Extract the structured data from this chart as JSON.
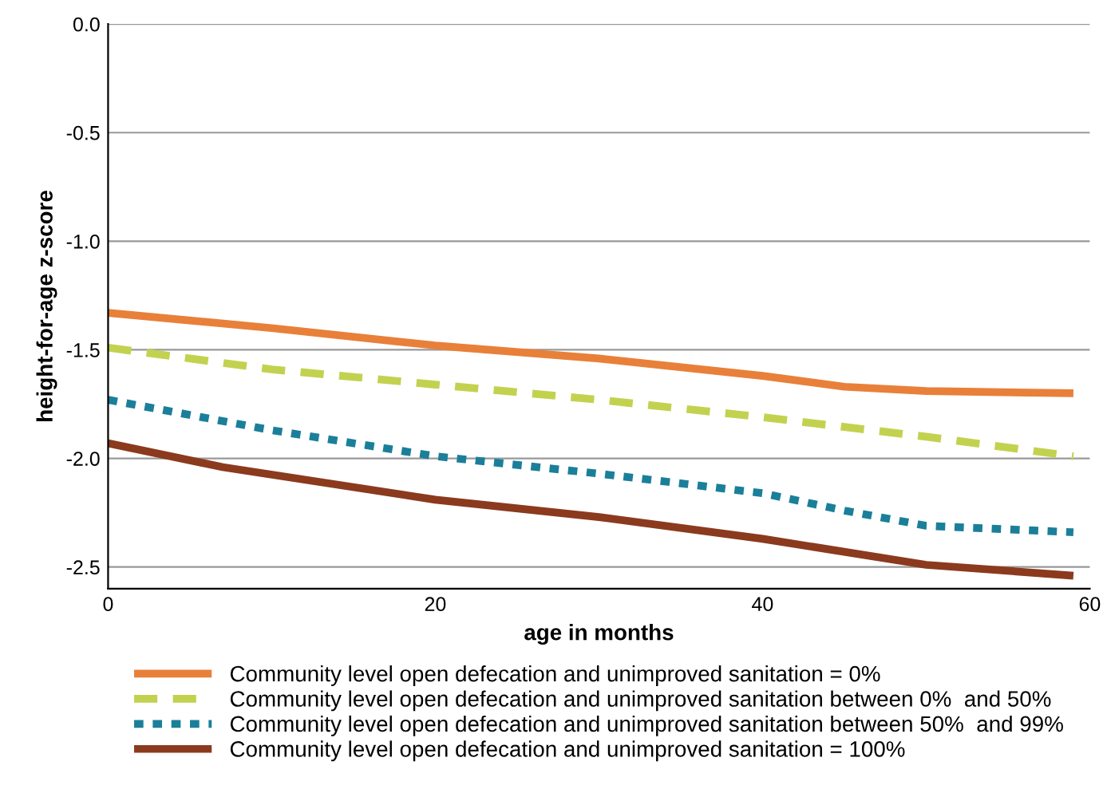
{
  "chart_data": {
    "type": "line",
    "xlabel": "age in months",
    "ylabel": "height-for-age z-score",
    "xlim": [
      0,
      60
    ],
    "xticks": [
      0,
      20,
      40,
      60
    ],
    "ylim": [
      -2.6,
      0
    ],
    "yticks": [
      {
        "value": 0,
        "label": "0.0"
      },
      {
        "value": -0.5,
        "label": "-0.5"
      },
      {
        "value": -1,
        "label": "-1.0"
      },
      {
        "value": -1.5,
        "label": "-1.5"
      },
      {
        "value": -2,
        "label": "-2.0"
      },
      {
        "value": -2.5,
        "label": "-2.5"
      }
    ],
    "grid": "y",
    "legend": "bottom",
    "marker": "none",
    "series": [
      {
        "name": "Community level open defecation and unimproved sanitation = 0%",
        "color": "#e8803a",
        "line_style": "solid",
        "x": [
          0,
          10,
          20,
          30,
          40,
          45,
          50,
          59
        ],
        "values": [
          -1.33,
          -1.4,
          -1.48,
          -1.54,
          -1.62,
          -1.67,
          -1.69,
          -1.7
        ]
      },
      {
        "name": "Community level open defecation and unimproved sanitation between 0%  and 50%",
        "color": "#c2d24f",
        "line_style": "dashed",
        "x": [
          0,
          10,
          20,
          30,
          40,
          50,
          59
        ],
        "values": [
          -1.49,
          -1.59,
          -1.66,
          -1.73,
          -1.81,
          -1.9,
          -1.99
        ]
      },
      {
        "name": "Community level open defecation and unimproved sanitation between 50%  and 99%",
        "color": "#1b7f9a",
        "line_style": "dotted",
        "x": [
          0,
          10,
          20,
          30,
          40,
          45,
          50,
          59
        ],
        "values": [
          -1.73,
          -1.87,
          -1.99,
          -2.07,
          -2.16,
          -2.24,
          -2.31,
          -2.34
        ]
      },
      {
        "name": "Community level open defecation and unimproved sanitation = 100%",
        "color": "#8b3a1e",
        "line_style": "solid",
        "x": [
          0,
          7,
          20,
          30,
          40,
          50,
          59
        ],
        "values": [
          -1.93,
          -2.04,
          -2.19,
          -2.27,
          -2.37,
          -2.49,
          -2.54
        ]
      }
    ]
  }
}
